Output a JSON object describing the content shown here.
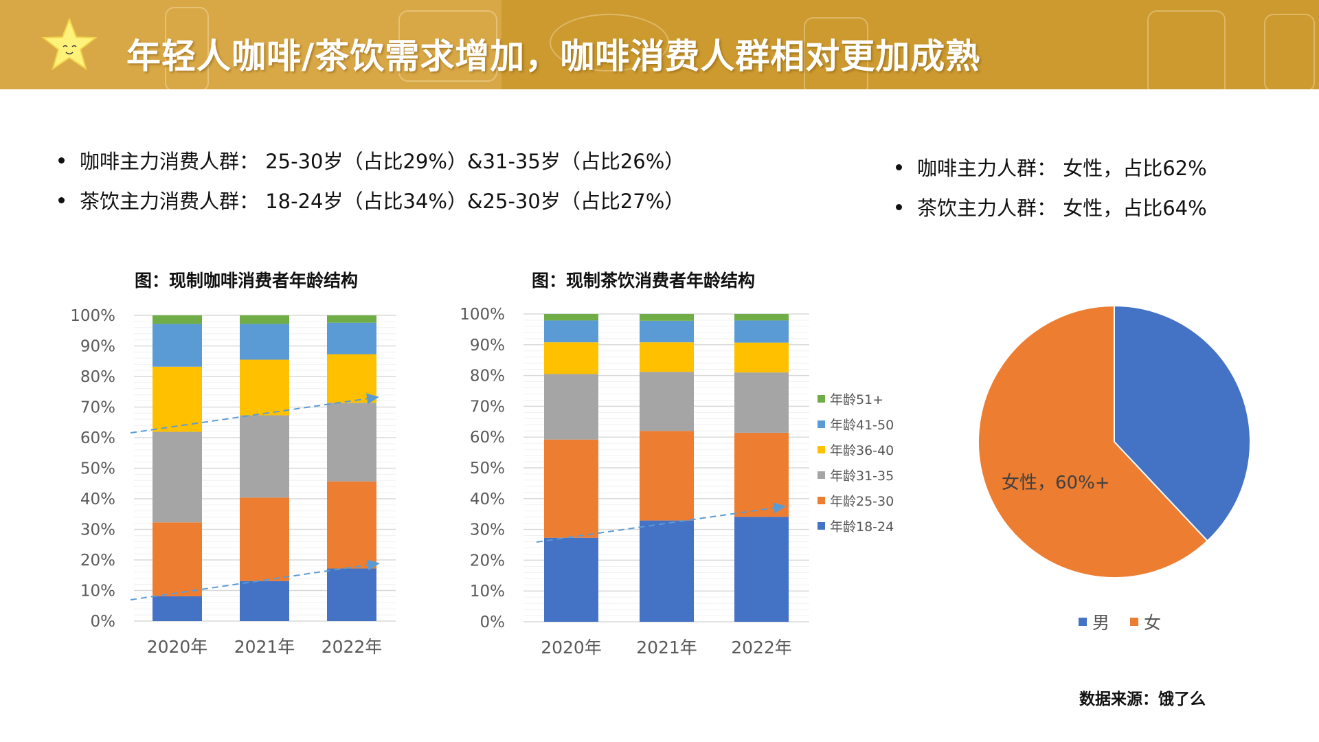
{
  "header": {
    "title": "年轻人咖啡/茶饮需求增加，咖啡消费人群相对更加成熟"
  },
  "bullets_left": [
    "咖啡主力消费人群：  25-30岁（占比29%）&31-35岁（占比26%）",
    "茶饮主力消费人群：  18-24岁（占比34%）&25-30岁（占比27%）"
  ],
  "bullets_right": [
    "咖啡主力人群：  女性，占比62%",
    "茶饮主力人群：  女性，占比64%"
  ],
  "source": "数据来源：饿了么",
  "colors": {
    "18-24": "#4472C4",
    "25-30": "#ED7D31",
    "31-35": "#A5A5A5",
    "36-40": "#FFC000",
    "41-50": "#5B9BD5",
    "51+": "#70AD47",
    "male": "#4472C4",
    "female": "#ED7D31"
  },
  "chart_data": [
    {
      "type": "bar",
      "stacked": true,
      "title": "图：现制咖啡消费者年龄结构",
      "categories": [
        "2020年",
        "2021年",
        "2022年"
      ],
      "yticks": [
        "0%",
        "10%",
        "20%",
        "30%",
        "40%",
        "50%",
        "60%",
        "70%",
        "80%",
        "90%",
        "100%"
      ],
      "ylim": [
        0,
        100
      ],
      "grid": true,
      "series": [
        {
          "key": "18-24",
          "values": [
            8.1,
            13.1,
            17.2
          ]
        },
        {
          "key": "25-30",
          "values": [
            24.2,
            27.3,
            28.5
          ]
        },
        {
          "key": "31-35",
          "values": [
            29.6,
            26.9,
            25.7
          ]
        },
        {
          "key": "36-40",
          "values": [
            21.3,
            18.2,
            15.9
          ]
        },
        {
          "key": "41-50",
          "values": [
            14.0,
            11.7,
            10.3
          ]
        },
        {
          "key": "51+",
          "values": [
            2.8,
            2.8,
            2.4
          ]
        }
      ],
      "trend_arrows": 2
    },
    {
      "type": "bar",
      "stacked": true,
      "title": "图：现制茶饮消费者年龄结构",
      "categories": [
        "2020年",
        "2021年",
        "2022年"
      ],
      "yticks": [
        "0%",
        "10%",
        "20%",
        "30%",
        "40%",
        "50%",
        "60%",
        "70%",
        "80%",
        "90%",
        "100%"
      ],
      "ylim": [
        0,
        100
      ],
      "grid": true,
      "legend_position": "right",
      "series": [
        {
          "key": "18-24",
          "name": "年龄18-24",
          "values": [
            27.3,
            32.9,
            34.1
          ]
        },
        {
          "key": "25-30",
          "name": "年龄25-30",
          "values": [
            31.9,
            29.1,
            27.3
          ]
        },
        {
          "key": "31-35",
          "name": "年龄31-35",
          "values": [
            21.3,
            19.2,
            19.6
          ]
        },
        {
          "key": "36-40",
          "name": "年龄36-40",
          "values": [
            10.3,
            9.6,
            9.7
          ]
        },
        {
          "key": "41-50",
          "name": "年龄41-50",
          "values": [
            7.1,
            7.0,
            7.2
          ]
        },
        {
          "key": "51+",
          "name": "年龄51+",
          "values": [
            2.1,
            2.2,
            2.1
          ]
        }
      ],
      "trend_arrows": 1
    },
    {
      "type": "pie",
      "slices": [
        {
          "key": "male",
          "name": "男",
          "value": 38
        },
        {
          "key": "female",
          "name": "女",
          "value": 62
        }
      ],
      "annotation": "女性，60%+",
      "legend_position": "bottom"
    }
  ]
}
